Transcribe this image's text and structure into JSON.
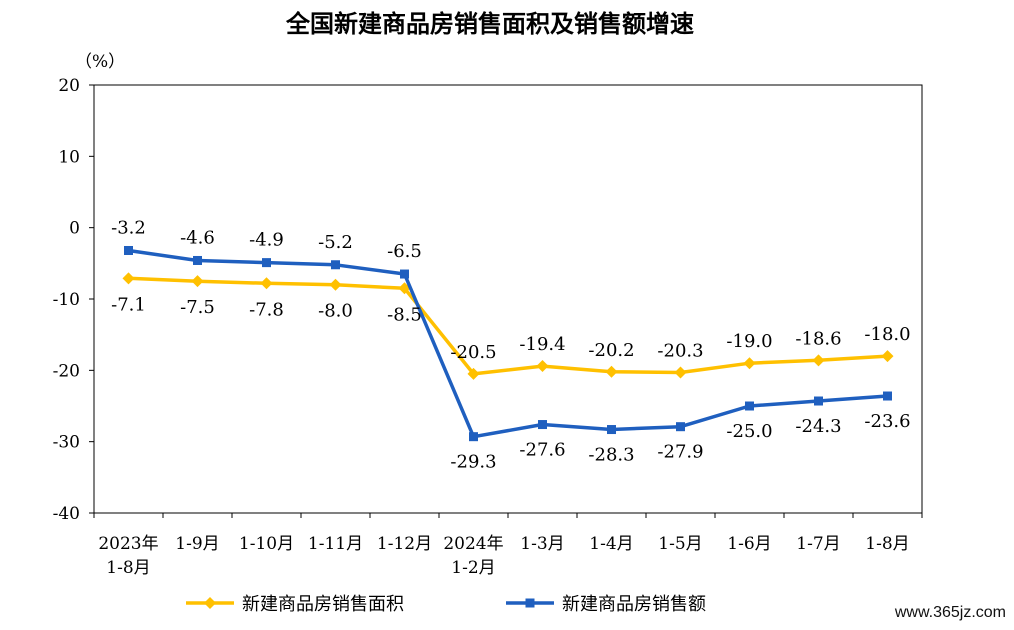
{
  "chart_data": {
    "type": "line",
    "title": "全国新建商品房销售面积及销售额增速",
    "y_unit": "（%）",
    "ylim": [
      -40,
      20
    ],
    "yticks": [
      20,
      10,
      0,
      -10,
      -20,
      -30,
      -40
    ],
    "categories": [
      [
        "2023年",
        "1-8月"
      ],
      [
        "1-9月"
      ],
      [
        "1-10月"
      ],
      [
        "1-11月"
      ],
      [
        "1-12月"
      ],
      [
        "2024年",
        "1-2月"
      ],
      [
        "1-3月"
      ],
      [
        "1-4月"
      ],
      [
        "1-5月"
      ],
      [
        "1-6月"
      ],
      [
        "1-7月"
      ],
      [
        "1-8月"
      ]
    ],
    "series": [
      {
        "name": "新建商品房销售面积",
        "color": "#FFC000",
        "marker": "diamond",
        "values": [
          -7.1,
          -7.5,
          -7.8,
          -8.0,
          -8.5,
          -20.5,
          -19.4,
          -20.2,
          -20.3,
          -19.0,
          -18.6,
          -18.0
        ],
        "labels": [
          "-7.1",
          "-7.5",
          "-7.8",
          "-8.0",
          "-8.5",
          "-20.5",
          "-19.4",
          "-20.2",
          "-20.3",
          "-19.0",
          "-18.6",
          "-18.0"
        ]
      },
      {
        "name": "新建商品房销售额",
        "color": "#1F5FBF",
        "marker": "square",
        "values": [
          -3.2,
          -4.6,
          -4.9,
          -5.2,
          -6.5,
          -29.3,
          -27.6,
          -28.3,
          -27.9,
          -25.0,
          -24.3,
          -23.6
        ],
        "labels": [
          "-3.2",
          "-4.6",
          "-4.9",
          "-5.2",
          "-6.5",
          "-29.3",
          "-27.6",
          "-28.3",
          "-27.9",
          "-25.0",
          "-24.3",
          "-23.6"
        ]
      }
    ],
    "grid": false,
    "legend_position": "bottom"
  },
  "watermark": "www.365jz.com"
}
